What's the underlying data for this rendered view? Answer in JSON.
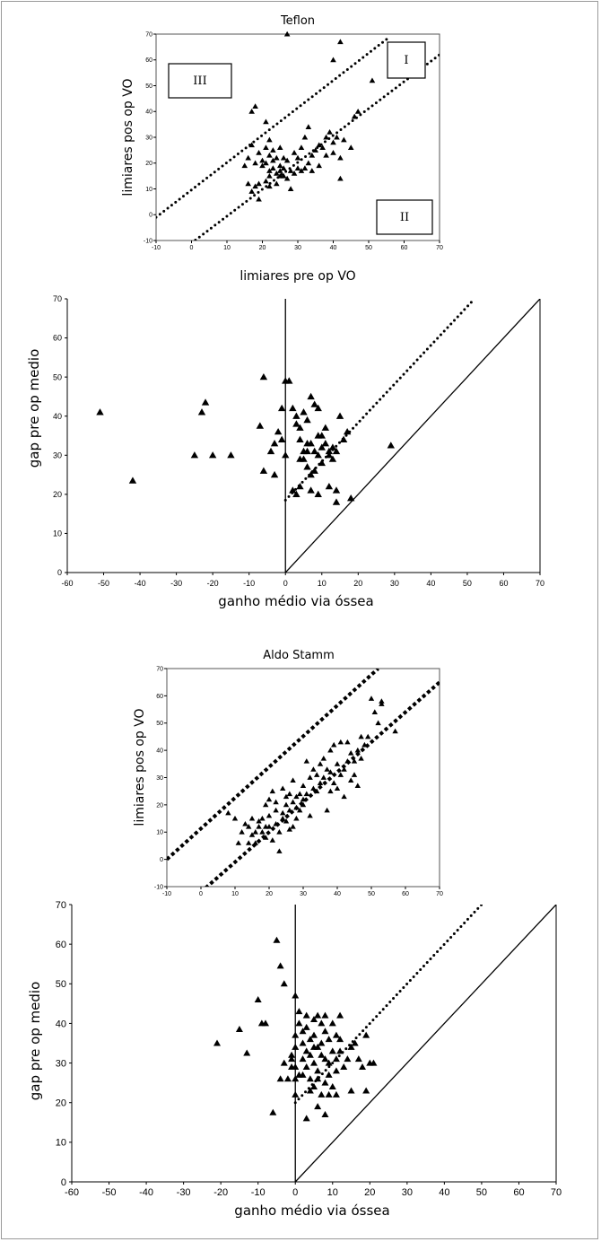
{
  "chart_data": [
    {
      "type": "scatter",
      "title": "Teflon",
      "xlabel": "limiares pre op VO",
      "ylabel": "limiares pos op VO",
      "xlim": [
        -10,
        70
      ],
      "ylim": [
        -10,
        70
      ],
      "xticks": [
        "-10",
        "0",
        "10",
        "20",
        "30",
        "40",
        "50",
        "60",
        "70"
      ],
      "yticks": [
        "-10",
        "0",
        "10",
        "20",
        "30",
        "40",
        "50",
        "60",
        "70"
      ],
      "marker": "triangle",
      "reference_lines": [
        {
          "style": "dotted",
          "points": [
            [
              -10,
              -1
            ],
            [
              56,
              69
            ]
          ]
        },
        {
          "style": "dotted",
          "points": [
            [
              0,
              -11
            ],
            [
              70,
              62
            ]
          ]
        }
      ],
      "region_labels": [
        "III",
        "I",
        "II"
      ],
      "points": [
        [
          27,
          70
        ],
        [
          42,
          67
        ],
        [
          40,
          60
        ],
        [
          51,
          52
        ],
        [
          46,
          38
        ],
        [
          18,
          42
        ],
        [
          17,
          40
        ],
        [
          21,
          36
        ],
        [
          22,
          29
        ],
        [
          17,
          27
        ],
        [
          19,
          24
        ],
        [
          21,
          26
        ],
        [
          23,
          25
        ],
        [
          25,
          26
        ],
        [
          22,
          23
        ],
        [
          24,
          22
        ],
        [
          26,
          22
        ],
        [
          27,
          21
        ],
        [
          25,
          19
        ],
        [
          23,
          18
        ],
        [
          22,
          17
        ],
        [
          20,
          19
        ],
        [
          21,
          20
        ],
        [
          26,
          18
        ],
        [
          28,
          17
        ],
        [
          24,
          16
        ],
        [
          22,
          15
        ],
        [
          25,
          15
        ],
        [
          27,
          14
        ],
        [
          21,
          13
        ],
        [
          19,
          12
        ],
        [
          22,
          11
        ],
        [
          18,
          11
        ],
        [
          16,
          12
        ],
        [
          17,
          9
        ],
        [
          19,
          6
        ],
        [
          24,
          12
        ],
        [
          28,
          10
        ],
        [
          30,
          22
        ],
        [
          31,
          26
        ],
        [
          32,
          30
        ],
        [
          33,
          34
        ],
        [
          33,
          20
        ],
        [
          34,
          23
        ],
        [
          35,
          25
        ],
        [
          36,
          27
        ],
        [
          37,
          26
        ],
        [
          36,
          19
        ],
        [
          38,
          30
        ],
        [
          39,
          32
        ],
        [
          40,
          28
        ],
        [
          41,
          30
        ],
        [
          38,
          23
        ],
        [
          40,
          24
        ],
        [
          42,
          22
        ],
        [
          43,
          29
        ],
        [
          42,
          14
        ],
        [
          45,
          26
        ],
        [
          46,
          38
        ],
        [
          47,
          40
        ],
        [
          30,
          18
        ],
        [
          29,
          16
        ],
        [
          31,
          17
        ],
        [
          34,
          17
        ],
        [
          15,
          19
        ],
        [
          16,
          22
        ],
        [
          18,
          20
        ],
        [
          20,
          21
        ],
        [
          23,
          21
        ],
        [
          25,
          17
        ],
        [
          26,
          15
        ],
        [
          29,
          24
        ],
        [
          32,
          18
        ]
      ]
    },
    {
      "type": "scatter",
      "title": "",
      "xlabel": "ganho médio via óssea",
      "ylabel": "gap pre op medio",
      "xlim": [
        -60,
        70
      ],
      "ylim": [
        0,
        70
      ],
      "xticks": [
        "-60",
        "-50",
        "-40",
        "-30",
        "-20",
        "-10",
        "0",
        "10",
        "20",
        "30",
        "40",
        "50",
        "60",
        "70"
      ],
      "yticks": [
        "0",
        "10",
        "20",
        "30",
        "40",
        "50",
        "60",
        "70"
      ],
      "marker": "triangle",
      "reference_lines": [
        {
          "style": "solid",
          "points": [
            [
              0,
              0
            ],
            [
              0,
              70
            ]
          ]
        },
        {
          "style": "solid",
          "points": [
            [
              0,
              0
            ],
            [
              70,
              70
            ]
          ]
        },
        {
          "style": "dotted",
          "points": [
            [
              0,
              18.5
            ],
            [
              52,
              70
            ]
          ]
        }
      ],
      "points": [
        [
          -51,
          41
        ],
        [
          -42,
          23.5
        ],
        [
          -25,
          30
        ],
        [
          -23,
          41
        ],
        [
          -22,
          43.5
        ],
        [
          -20,
          30
        ],
        [
          -15,
          30
        ],
        [
          -7,
          37.5
        ],
        [
          -6,
          50
        ],
        [
          -6,
          26
        ],
        [
          -4,
          31
        ],
        [
          -3,
          33
        ],
        [
          -3,
          25
        ],
        [
          -2,
          36
        ],
        [
          -1,
          34
        ],
        [
          -1,
          42
        ],
        [
          0,
          49
        ],
        [
          1,
          49
        ],
        [
          0,
          30
        ],
        [
          2,
          42
        ],
        [
          3,
          40
        ],
        [
          3,
          38
        ],
        [
          4,
          37
        ],
        [
          4,
          34
        ],
        [
          5,
          41
        ],
        [
          6,
          39
        ],
        [
          7,
          45
        ],
        [
          8,
          43
        ],
        [
          9,
          42
        ],
        [
          7,
          33
        ],
        [
          8,
          31
        ],
        [
          9,
          30
        ],
        [
          10,
          32
        ],
        [
          11,
          33
        ],
        [
          12,
          31
        ],
        [
          13,
          32
        ],
        [
          10,
          28
        ],
        [
          8,
          26
        ],
        [
          7,
          25
        ],
        [
          6,
          27
        ],
        [
          5,
          29
        ],
        [
          9,
          35
        ],
        [
          11,
          37
        ],
        [
          13,
          29
        ],
        [
          15,
          40
        ],
        [
          16,
          34
        ],
        [
          17,
          36
        ],
        [
          18,
          19
        ],
        [
          12,
          22
        ],
        [
          14,
          21
        ],
        [
          14,
          18
        ],
        [
          9,
          20
        ],
        [
          7,
          21
        ],
        [
          4,
          22
        ],
        [
          2,
          21
        ],
        [
          3,
          20
        ],
        [
          29,
          32.5
        ],
        [
          5,
          31
        ],
        [
          6,
          33
        ],
        [
          10,
          35
        ],
        [
          12,
          30
        ],
        [
          14,
          31
        ],
        [
          4,
          29
        ],
        [
          6,
          31
        ]
      ]
    },
    {
      "type": "scatter",
      "title": "Aldo Stamm",
      "xlabel": "",
      "ylabel": "limiares pos op VO",
      "xlim": [
        -10,
        70
      ],
      "ylim": [
        -10,
        70
      ],
      "xticks": [
        "-10",
        "0",
        "10",
        "20",
        "30",
        "40",
        "50",
        "60",
        "70"
      ],
      "yticks": [
        "-10",
        "0",
        "10",
        "20",
        "30",
        "40",
        "50",
        "60",
        "70"
      ],
      "marker": "triangle",
      "reference_lines": [
        {
          "style": "dashed",
          "points": [
            [
              -10,
              0
            ],
            [
              52,
              70
            ]
          ]
        },
        {
          "style": "dashed",
          "points": [
            [
              0,
              -12
            ],
            [
              70,
              65
            ]
          ]
        }
      ],
      "points": [
        [
          8,
          17
        ],
        [
          10,
          15
        ],
        [
          11,
          6
        ],
        [
          12,
          10
        ],
        [
          13,
          13
        ],
        [
          14,
          12
        ],
        [
          14,
          6
        ],
        [
          15,
          15
        ],
        [
          16,
          6
        ],
        [
          16,
          10
        ],
        [
          17,
          14
        ],
        [
          18,
          15
        ],
        [
          18,
          10
        ],
        [
          19,
          12
        ],
        [
          19,
          20
        ],
        [
          20,
          22
        ],
        [
          20,
          16
        ],
        [
          21,
          25
        ],
        [
          22,
          18
        ],
        [
          22,
          13
        ],
        [
          23,
          3
        ],
        [
          23,
          10
        ],
        [
          24,
          26
        ],
        [
          24,
          15
        ],
        [
          25,
          20
        ],
        [
          25,
          14
        ],
        [
          26,
          18
        ],
        [
          26,
          11
        ],
        [
          27,
          29
        ],
        [
          27,
          21
        ],
        [
          28,
          15
        ],
        [
          28,
          19
        ],
        [
          29,
          24
        ],
        [
          29,
          18
        ],
        [
          30,
          22
        ],
        [
          30,
          27
        ],
        [
          31,
          36
        ],
        [
          31,
          24
        ],
        [
          32,
          30
        ],
        [
          33,
          33
        ],
        [
          33,
          26
        ],
        [
          34,
          31
        ],
        [
          35,
          35
        ],
        [
          35,
          28
        ],
        [
          36,
          30
        ],
        [
          37,
          18
        ],
        [
          37,
          33
        ],
        [
          38,
          40
        ],
        [
          38,
          32
        ],
        [
          39,
          28
        ],
        [
          40,
          35
        ],
        [
          40,
          26
        ],
        [
          41,
          43
        ],
        [
          41,
          31
        ],
        [
          42,
          33
        ],
        [
          42,
          23
        ],
        [
          43,
          36
        ],
        [
          43,
          43
        ],
        [
          44,
          39
        ],
        [
          44,
          29
        ],
        [
          45,
          31
        ],
        [
          46,
          40
        ],
        [
          46,
          27
        ],
        [
          47,
          37
        ],
        [
          47,
          45
        ],
        [
          48,
          42
        ],
        [
          50,
          59
        ],
        [
          51,
          54
        ],
        [
          52,
          50
        ],
        [
          53,
          58
        ],
        [
          57,
          47
        ],
        [
          21,
          7
        ],
        [
          24,
          17
        ],
        [
          27,
          12
        ],
        [
          30,
          20
        ],
        [
          32,
          16
        ],
        [
          15,
          9
        ],
        [
          17,
          12
        ],
        [
          19,
          8
        ],
        [
          22,
          21
        ],
        [
          26,
          24
        ],
        [
          28,
          23
        ],
        [
          34,
          25
        ],
        [
          36,
          37
        ],
        [
          38,
          25
        ],
        [
          39,
          42
        ],
        [
          45,
          36
        ],
        [
          49,
          45
        ],
        [
          53,
          57
        ],
        [
          20,
          12
        ],
        [
          25,
          23
        ]
      ]
    },
    {
      "type": "scatter",
      "title": "",
      "xlabel": "ganho médio via óssea",
      "ylabel": "gap pre op medio",
      "xlim": [
        -60,
        70
      ],
      "ylim": [
        0,
        70
      ],
      "xticks": [
        "-60",
        "-50",
        "-40",
        "-30",
        "-20",
        "-10",
        "0",
        "10",
        "20",
        "30",
        "40",
        "50",
        "60",
        "70"
      ],
      "yticks": [
        "0",
        "10",
        "20",
        "30",
        "40",
        "50",
        "60",
        "70"
      ],
      "marker": "triangle",
      "reference_lines": [
        {
          "style": "solid",
          "points": [
            [
              0,
              0
            ],
            [
              0,
              70
            ]
          ]
        },
        {
          "style": "solid",
          "points": [
            [
              0,
              0
            ],
            [
              70,
              70
            ]
          ]
        },
        {
          "style": "dotted",
          "points": [
            [
              0,
              20
            ],
            [
              50,
              70
            ]
          ]
        }
      ],
      "points": [
        [
          -21,
          35
        ],
        [
          -15,
          38.5
        ],
        [
          -13,
          32.5
        ],
        [
          -10,
          46
        ],
        [
          -9,
          40
        ],
        [
          -8,
          40
        ],
        [
          -6,
          17.5
        ],
        [
          -5,
          61
        ],
        [
          -4,
          54.5
        ],
        [
          -4,
          26
        ],
        [
          -3,
          50
        ],
        [
          -3,
          30
        ],
        [
          -2,
          26
        ],
        [
          -1,
          29
        ],
        [
          -1,
          32
        ],
        [
          0,
          47
        ],
        [
          0,
          37
        ],
        [
          0,
          34
        ],
        [
          0,
          29
        ],
        [
          0,
          26
        ],
        [
          0,
          22
        ],
        [
          1,
          43
        ],
        [
          1,
          40
        ],
        [
          2,
          38
        ],
        [
          2,
          35
        ],
        [
          2,
          31
        ],
        [
          2,
          27
        ],
        [
          3,
          42
        ],
        [
          3,
          39
        ],
        [
          3,
          33
        ],
        [
          3,
          29
        ],
        [
          3,
          16
        ],
        [
          4,
          36
        ],
        [
          4,
          32
        ],
        [
          4,
          26
        ],
        [
          4,
          23
        ],
        [
          5,
          41
        ],
        [
          5,
          37
        ],
        [
          5,
          34
        ],
        [
          5,
          30
        ],
        [
          5,
          24
        ],
        [
          6,
          42
        ],
        [
          6,
          28
        ],
        [
          6,
          26
        ],
        [
          6,
          19
        ],
        [
          7,
          40
        ],
        [
          7,
          35
        ],
        [
          7,
          32
        ],
        [
          7,
          22
        ],
        [
          8,
          42
        ],
        [
          8,
          38
        ],
        [
          8,
          31
        ],
        [
          8,
          25
        ],
        [
          8,
          17
        ],
        [
          9,
          36
        ],
        [
          9,
          30
        ],
        [
          9,
          27
        ],
        [
          10,
          40
        ],
        [
          10,
          33
        ],
        [
          10,
          24
        ],
        [
          11,
          37
        ],
        [
          11,
          31
        ],
        [
          11,
          28
        ],
        [
          11,
          22
        ],
        [
          12,
          36
        ],
        [
          12,
          33
        ],
        [
          12,
          42
        ],
        [
          13,
          29
        ],
        [
          14,
          31
        ],
        [
          15,
          34
        ],
        [
          15,
          23
        ],
        [
          16,
          35
        ],
        [
          17,
          31
        ],
        [
          18,
          29
        ],
        [
          19,
          37
        ],
        [
          19,
          23
        ],
        [
          20,
          30
        ],
        [
          21,
          30
        ],
        [
          -1,
          31
        ],
        [
          1,
          27
        ],
        [
          6,
          34
        ],
        [
          9,
          22
        ]
      ]
    }
  ]
}
